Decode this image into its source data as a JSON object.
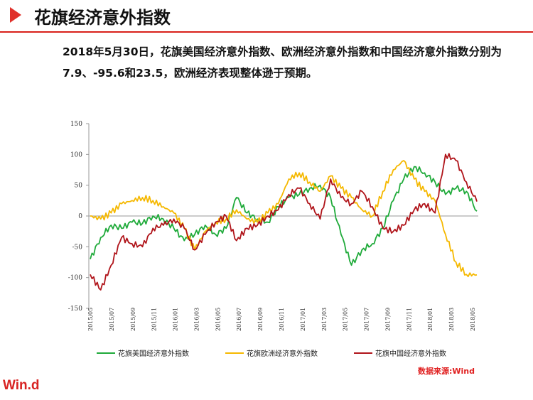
{
  "header": {
    "title": "花旗经济意外指数"
  },
  "summary": "2018年5月30日，花旗美国经济意外指数、欧洲经济意外指数和中国经济意外指数分别为7.9、-95.6和23.5，欧洲经济表现整体逊于预期。",
  "source": "数据来源:Wind",
  "logo": "Win.d",
  "colors": {
    "us": "#1faa3a",
    "eu": "#f5b800",
    "cn": "#b0141a",
    "accent": "#e0312b"
  },
  "chart_data": {
    "type": "line",
    "title": "",
    "xlabel": "",
    "ylabel": "",
    "ylim": [
      -150,
      150
    ],
    "yticks": [
      150,
      100,
      50,
      0,
      -50,
      -100,
      -150
    ],
    "xticks": [
      "2015/05",
      "2015/07",
      "2015/09",
      "2015/11",
      "2016/01",
      "2016/03",
      "2016/05",
      "2016/07",
      "2016/09",
      "2016/11",
      "2017/01",
      "2017/03",
      "2017/05",
      "2017/07",
      "2017/09",
      "2017/11",
      "2018/01",
      "2018/03",
      "2018/05"
    ],
    "legend_position": "bottom",
    "grid": false,
    "x": [
      "2015/05",
      "2015/06",
      "2015/07",
      "2015/08",
      "2015/09",
      "2015/10",
      "2015/11",
      "2015/12",
      "2016/01",
      "2016/02",
      "2016/03",
      "2016/04",
      "2016/05",
      "2016/06",
      "2016/07",
      "2016/08",
      "2016/09",
      "2016/10",
      "2016/11",
      "2016/12",
      "2017/01",
      "2017/02",
      "2017/03",
      "2017/04",
      "2017/05",
      "2017/06",
      "2017/07",
      "2017/08",
      "2017/09",
      "2017/10",
      "2017/11",
      "2017/12",
      "2018/01",
      "2018/02",
      "2018/03",
      "2018/04",
      "2018/05",
      "2018/05/30"
    ],
    "series": [
      {
        "name": "花旗美国经济意外指数",
        "key": "us",
        "values": [
          -70,
          -35,
          -15,
          -20,
          -10,
          -12,
          0,
          -5,
          -20,
          -40,
          -30,
          -15,
          -30,
          -20,
          30,
          5,
          -5,
          -10,
          15,
          30,
          35,
          45,
          50,
          30,
          -30,
          -80,
          -55,
          -45,
          -20,
          25,
          60,
          80,
          70,
          55,
          35,
          45,
          40,
          7.9
        ]
      },
      {
        "name": "花旗欧洲经济意外指数",
        "key": "eu",
        "values": [
          0,
          -5,
          5,
          20,
          25,
          30,
          25,
          15,
          5,
          -20,
          -55,
          -25,
          -10,
          -5,
          10,
          -5,
          -10,
          5,
          20,
          60,
          70,
          55,
          40,
          65,
          45,
          30,
          10,
          0,
          40,
          75,
          90,
          60,
          40,
          25,
          -30,
          -75,
          -95,
          -95.6
        ]
      },
      {
        "name": "花旗中国经济意外指数",
        "key": "cn",
        "values": [
          -95,
          -120,
          -80,
          -35,
          -45,
          -50,
          -20,
          -15,
          -5,
          -20,
          -55,
          -30,
          -10,
          0,
          -40,
          -20,
          -15,
          0,
          10,
          35,
          45,
          20,
          -5,
          60,
          30,
          20,
          40,
          15,
          -20,
          -25,
          -15,
          10,
          20,
          5,
          100,
          90,
          55,
          23.5
        ]
      }
    ]
  }
}
